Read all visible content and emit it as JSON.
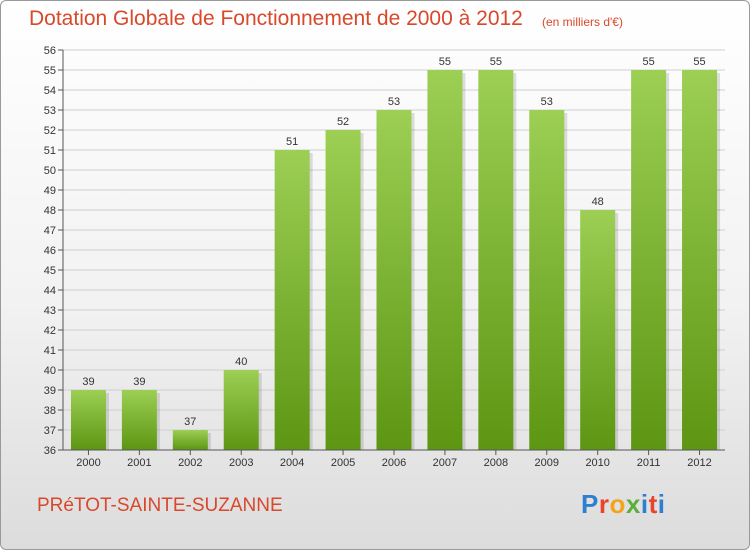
{
  "header": {
    "title": "Dotation Globale de Fonctionnement de 2000 à 2012",
    "unit": "(en milliers d'€)"
  },
  "footer": {
    "commune": "PRéTOT-SAINTE-SUZANNE",
    "logo_letters": [
      "P",
      "r",
      "o",
      "x",
      "i",
      "t",
      "i"
    ]
  },
  "colors": {
    "bar_top": "#9ccf54",
    "bar_bottom": "#5d9613",
    "title": "#d9482b",
    "grid": "#cfcfcf"
  },
  "chart_data": {
    "type": "bar",
    "title": "Dotation Globale de Fonctionnement de 2000 à 2012",
    "subtitle": "(en milliers d'€)",
    "xlabel": "",
    "ylabel": "",
    "categories": [
      "2000",
      "2001",
      "2002",
      "2003",
      "2004",
      "2005",
      "2006",
      "2007",
      "2008",
      "2009",
      "2010",
      "2011",
      "2012"
    ],
    "values": [
      39,
      39,
      37,
      40,
      51,
      52,
      53,
      55,
      55,
      53,
      48,
      55,
      55
    ],
    "ylim": [
      36,
      56
    ],
    "yticks": [
      36,
      37,
      38,
      39,
      40,
      41,
      42,
      43,
      44,
      45,
      46,
      47,
      48,
      49,
      50,
      51,
      52,
      53,
      54,
      55,
      56
    ],
    "grid": true,
    "legend": "none"
  }
}
